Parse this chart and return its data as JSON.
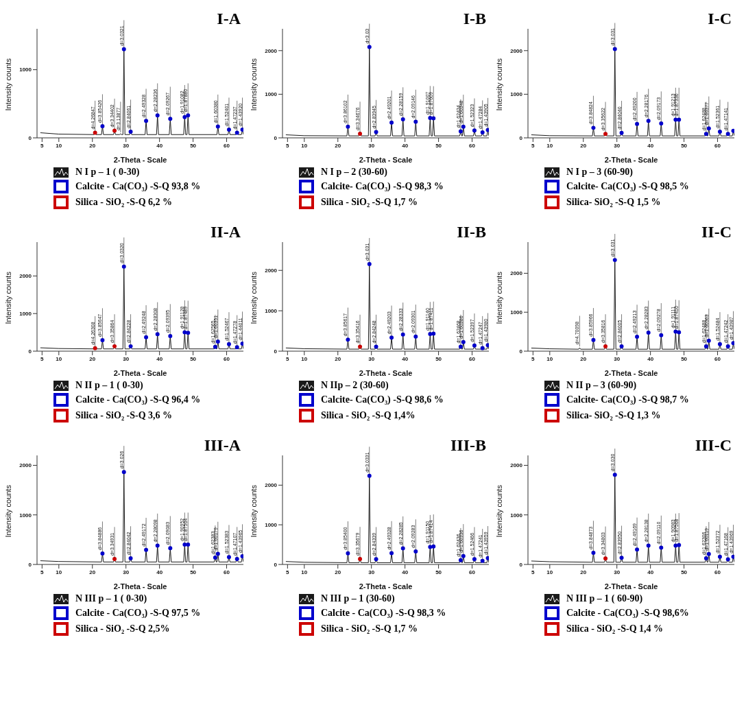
{
  "chart_data": [
    {
      "type": "line",
      "title": "I-A",
      "xlabel": "2-Theta - Scale",
      "ylabel": "Intensity counts",
      "xlim": [
        3.5,
        65
      ],
      "xticks": [
        5,
        10,
        20,
        30,
        40,
        50,
        60
      ],
      "ylim": [
        0,
        1600
      ],
      "yticks": [
        0,
        1000
      ],
      "legend": "bottom",
      "x": [
        4.5,
        10,
        20.5,
        20.8,
        21.1,
        22.7,
        23.0,
        23.3,
        26.3,
        26.6,
        26.9,
        28.1,
        28.4,
        28.7,
        29.1,
        29.4,
        29.7,
        31.1,
        31.4,
        31.7,
        35.7,
        36.0,
        36.3,
        39.1,
        39.4,
        39.7,
        42.9,
        43.2,
        43.5,
        47.2,
        47.5,
        47.8,
        48.2,
        48.5,
        48.8,
        57.1,
        57.4,
        57.7,
        60.4,
        60.7,
        61.0,
        62.8,
        63.1,
        63.4,
        64.4,
        64.7,
        65
      ],
      "series": [
        {
          "name": "N I p – 1 ( 0-30)",
          "color": "#1a1a1a",
          "values": [
            75,
            55,
            48,
            75,
            48,
            48,
            170,
            48,
            48,
            105,
            48,
            48,
            60,
            48,
            48,
            1300,
            48,
            48,
            90,
            48,
            48,
            250,
            48,
            48,
            330,
            48,
            48,
            280,
            48,
            48,
            305,
            48,
            48,
            330,
            48,
            48,
            165,
            48,
            48,
            120,
            48,
            48,
            75,
            48,
            48,
            120,
            48
          ]
        },
        {
          "name": "Calcite - Ca(CO₃) -S-Q 93,8 %",
          "type": "scatter",
          "marker": "circle",
          "color": "#0000cc",
          "x": [
            23.0,
            29.4,
            31.4,
            36.0,
            39.4,
            43.2,
            47.5,
            48.5,
            57.4,
            60.7,
            63.1,
            64.7
          ],
          "values": [
            170,
            1300,
            90,
            250,
            330,
            280,
            305,
            330,
            165,
            120,
            75,
            120
          ]
        },
        {
          "name": "Silica - SiO₂ -S-Q 6,2 %",
          "type": "scatter",
          "color": "#cc0000",
          "x": [
            20.8,
            26.6
          ],
          "values": [
            75,
            105
          ],
          "marker": "circle"
        }
      ],
      "annotations": [
        {
          "text": "d=4.26847",
          "x": 20.8,
          "y": 75
        },
        {
          "text": "d=3.85426",
          "x": 23.0,
          "y": 170
        },
        {
          "text": "d=3.34402",
          "x": 26.6,
          "y": 105
        },
        {
          "text": "d=3.13877",
          "x": 28.4,
          "y": 60
        },
        {
          "text": "d=3.0321",
          "x": 29.4,
          "y": 1300
        },
        {
          "text": "d=2.84061",
          "x": 31.4,
          "y": 90
        },
        {
          "text": "d=2.49328",
          "x": 36.0,
          "y": 250
        },
        {
          "text": "d=2.28236",
          "x": 39.4,
          "y": 330
        },
        {
          "text": "d=2.09267",
          "x": 43.2,
          "y": 280
        },
        {
          "text": "d=1.91082",
          "x": 47.5,
          "y": 305
        },
        {
          "text": "d=1.87880",
          "x": 48.5,
          "y": 330
        },
        {
          "text": "d=1.60380",
          "x": 57.4,
          "y": 165
        },
        {
          "text": "d=1.52401",
          "x": 60.7,
          "y": 120
        },
        {
          "text": "d=1.47237",
          "x": 63.1,
          "y": 75
        },
        {
          "text": "d=1.43920",
          "x": 64.7,
          "y": 120
        }
      ]
    },
    {
      "type": "line",
      "title": "I-B",
      "xlabel": "2-Theta - Scale",
      "ylabel": "Intensity counts",
      "xlim": [
        3.5,
        65
      ],
      "xticks": [
        5,
        10,
        20,
        30,
        40,
        50,
        60
      ],
      "ylim": [
        0,
        2500
      ],
      "yticks": [
        0,
        1000,
        2000
      ],
      "legend": "bottom",
      "x": [
        4.5,
        10,
        22.7,
        23.0,
        23.3,
        26.3,
        26.6,
        26.9,
        29.1,
        29.4,
        29.7,
        31.1,
        31.4,
        31.7,
        35.7,
        36.0,
        36.3,
        39.1,
        39.4,
        39.7,
        42.9,
        43.2,
        43.5,
        47.2,
        47.5,
        47.8,
        48.2,
        48.5,
        48.8,
        56.3,
        56.6,
        56.9,
        57.1,
        57.4,
        57.7,
        60.4,
        60.7,
        61.0,
        62.8,
        63.1,
        63.4,
        64.4,
        64.7,
        65
      ],
      "series": [
        {
          "name": "N I p – 2 (30-60)",
          "color": "#1a1a1a",
          "values": [
            70,
            50,
            45,
            257,
            45,
            45,
            95,
            45,
            45,
            2085,
            45,
            45,
            135,
            45,
            45,
            350,
            45,
            45,
            425,
            45,
            45,
            370,
            45,
            45,
            455,
            45,
            45,
            450,
            45,
            45,
            150,
            45,
            45,
            255,
            45,
            45,
            170,
            45,
            45,
            125,
            45,
            45,
            180,
            45
          ]
        },
        {
          "name": "Calcite- Ca(CO₃) -S-Q 98,3 %",
          "type": "scatter",
          "marker": "circle",
          "color": "#0000cc",
          "x": [
            23.0,
            29.4,
            31.4,
            36.0,
            39.4,
            43.2,
            47.5,
            48.5,
            56.6,
            57.4,
            60.7,
            63.1,
            64.7
          ],
          "values": [
            257,
            2085,
            135,
            350,
            425,
            370,
            455,
            450,
            150,
            255,
            170,
            125,
            180
          ]
        },
        {
          "name": "Silica - SiO₂ -S-Q 1,7 %",
          "type": "scatter",
          "color": "#cc0000",
          "x": [
            26.6
          ],
          "values": [
            95
          ],
          "marker": "circle"
        }
      ],
      "annotations": [
        {
          "text": "d=3.86102",
          "x": 23.0,
          "y": 257
        },
        {
          "text": "d=3.34676",
          "x": 26.6,
          "y": 95
        },
        {
          "text": "d=3.03",
          "x": 29.4,
          "y": 2085
        },
        {
          "text": "d=2.83945",
          "x": 31.4,
          "y": 135
        },
        {
          "text": "d=2.49201",
          "x": 36.0,
          "y": 350
        },
        {
          "text": "d=2.28159",
          "x": 39.4,
          "y": 425
        },
        {
          "text": "d=2.09146",
          "x": 43.2,
          "y": 370
        },
        {
          "text": "d=1.91007",
          "x": 47.5,
          "y": 455
        },
        {
          "text": "d=1.87609",
          "x": 48.5,
          "y": 450
        },
        {
          "text": "d=1.62434",
          "x": 56.6,
          "y": 150
        },
        {
          "text": "d=1.60348",
          "x": 57.4,
          "y": 255
        },
        {
          "text": "d=1.52323",
          "x": 60.7,
          "y": 170
        },
        {
          "text": "d=1.47284",
          "x": 63.1,
          "y": 125
        },
        {
          "text": "d=1.43905",
          "x": 64.7,
          "y": 180
        }
      ]
    },
    {
      "type": "line",
      "title": "I-C",
      "xlabel": "2-Theta - Scale",
      "ylabel": "Intensity counts",
      "xlim": [
        3.5,
        65
      ],
      "xticks": [
        5,
        10,
        20,
        30,
        40,
        50,
        60
      ],
      "ylim": [
        0,
        2500
      ],
      "yticks": [
        0,
        1000,
        2000
      ],
      "legend": "bottom",
      "x": [
        4.5,
        10,
        22.7,
        23.0,
        23.3,
        26.3,
        26.6,
        26.9,
        29.1,
        29.4,
        29.7,
        31.1,
        31.4,
        31.7,
        35.7,
        36.0,
        36.3,
        39.1,
        39.4,
        39.7,
        42.9,
        43.2,
        43.5,
        47.2,
        47.5,
        47.8,
        48.2,
        48.5,
        48.8,
        56.3,
        56.6,
        56.9,
        57.1,
        57.4,
        57.7,
        60.4,
        60.7,
        61.0,
        62.8,
        63.1,
        63.4,
        64.4,
        64.7,
        65
      ],
      "series": [
        {
          "name": "N I p – 3 (60-90)",
          "color": "#1a1a1a",
          "values": [
            70,
            50,
            45,
            230,
            45,
            45,
            90,
            45,
            45,
            2035,
            45,
            45,
            115,
            45,
            45,
            320,
            45,
            45,
            390,
            45,
            45,
            330,
            45,
            45,
            415,
            45,
            45,
            415,
            45,
            45,
            90,
            45,
            45,
            215,
            45,
            45,
            140,
            45,
            45,
            90,
            45,
            45,
            160,
            45
          ]
        },
        {
          "name": "Calcite- Ca(CO₃) -S-Q 98,5 %",
          "type": "scatter",
          "marker": "circle",
          "color": "#0000cc",
          "x": [
            23.0,
            29.4,
            31.4,
            36.0,
            39.4,
            43.2,
            47.5,
            48.5,
            56.6,
            57.4,
            60.7,
            63.1,
            64.7
          ],
          "values": [
            230,
            2035,
            115,
            320,
            390,
            330,
            415,
            415,
            90,
            215,
            140,
            90,
            160
          ]
        },
        {
          "name": "Silica- SiO₂ -S-Q 1,5 %",
          "type": "scatter",
          "color": "#cc0000",
          "x": [
            26.6
          ],
          "values": [
            90
          ],
          "marker": "circle"
        }
      ],
      "annotations": [
        {
          "text": "d=3.84824",
          "x": 23.0,
          "y": 230
        },
        {
          "text": "d=3.35622",
          "x": 26.6,
          "y": 90
        },
        {
          "text": "d=3.031",
          "x": 29.4,
          "y": 2035
        },
        {
          "text": "d=2.84040",
          "x": 31.4,
          "y": 115
        },
        {
          "text": "d=2.49200",
          "x": 36.0,
          "y": 320
        },
        {
          "text": "d=2.28176",
          "x": 39.4,
          "y": 390
        },
        {
          "text": "d=2.09173",
          "x": 43.2,
          "y": 330
        },
        {
          "text": "d=1.91213",
          "x": 47.5,
          "y": 415
        },
        {
          "text": "d=1.87336",
          "x": 48.5,
          "y": 415
        },
        {
          "text": "d=1.62488",
          "x": 56.6,
          "y": 90
        },
        {
          "text": "d=1.60377",
          "x": 57.4,
          "y": 215
        },
        {
          "text": "d=1.52361",
          "x": 60.7,
          "y": 140
        },
        {
          "text": "d=1.47141",
          "x": 63.1,
          "y": 90
        }
      ]
    },
    {
      "type": "line",
      "title": "II-A",
      "xlabel": "2-Theta - Scale",
      "ylabel": "Intensity counts",
      "xlim": [
        3.5,
        65
      ],
      "xticks": [
        5,
        10,
        20,
        30,
        40,
        50,
        60
      ],
      "ylim": [
        0,
        2900
      ],
      "yticks": [
        0,
        1000,
        2000
      ],
      "legend": "bottom",
      "x": [
        4.5,
        10,
        20.5,
        20.8,
        21.1,
        22.7,
        23.0,
        23.3,
        26.3,
        26.6,
        26.9,
        29.1,
        29.4,
        29.7,
        31.1,
        31.4,
        31.7,
        35.7,
        36.0,
        36.3,
        39.1,
        39.4,
        39.7,
        42.9,
        43.2,
        43.5,
        47.2,
        47.5,
        47.8,
        48.2,
        48.5,
        48.8,
        56.3,
        56.6,
        56.9,
        57.1,
        57.4,
        57.7,
        60.4,
        60.7,
        61.0,
        62.8,
        63.1,
        63.4,
        64.4,
        64.7,
        65
      ],
      "series": [
        {
          "name": "N II p – 1 ( 0-30)",
          "color": "#1a1a1a",
          "values": [
            90,
            70,
            60,
            80,
            60,
            60,
            290,
            60,
            60,
            130,
            60,
            60,
            2250,
            60,
            60,
            130,
            60,
            60,
            370,
            60,
            60,
            450,
            60,
            60,
            400,
            60,
            60,
            500,
            60,
            60,
            490,
            60,
            60,
            115,
            60,
            60,
            255,
            60,
            60,
            185,
            60,
            60,
            105,
            60,
            60,
            200,
            60
          ]
        },
        {
          "name": "Calcite - Ca(CO₃) -S-Q 96,4 %",
          "type": "scatter",
          "marker": "circle",
          "color": "#0000cc",
          "x": [
            23.0,
            29.4,
            31.4,
            36.0,
            39.4,
            43.2,
            47.5,
            48.5,
            56.6,
            57.4,
            60.7,
            63.1,
            64.7
          ],
          "values": [
            290,
            2250,
            130,
            370,
            450,
            400,
            500,
            490,
            115,
            255,
            185,
            105,
            200
          ]
        },
        {
          "name": "Silica - SiO₂ -S-Q 3,6 %",
          "type": "scatter",
          "color": "#cc0000",
          "x": [
            20.8,
            26.6
          ],
          "values": [
            80,
            130
          ],
          "marker": "circle"
        }
      ],
      "annotations": [
        {
          "text": "d=4.26308",
          "x": 20.8,
          "y": 80
        },
        {
          "text": "d=3.85647",
          "x": 23.0,
          "y": 290
        },
        {
          "text": "d=3.35864",
          "x": 26.6,
          "y": 130
        },
        {
          "text": "d=3.0320",
          "x": 29.4,
          "y": 2250
        },
        {
          "text": "d=2.84228",
          "x": 31.4,
          "y": 130
        },
        {
          "text": "d=2.49248",
          "x": 36.0,
          "y": 370
        },
        {
          "text": "d=2.28308",
          "x": 39.4,
          "y": 450
        },
        {
          "text": "d=2.09395",
          "x": 43.2,
          "y": 400
        },
        {
          "text": "d=1.91128",
          "x": 47.5,
          "y": 500
        },
        {
          "text": "d=1.87489",
          "x": 48.5,
          "y": 490
        },
        {
          "text": "d=1.62565",
          "x": 56.6,
          "y": 115
        },
        {
          "text": "d=1.60351",
          "x": 57.4,
          "y": 255
        },
        {
          "text": "d=1.52467",
          "x": 60.7,
          "y": 185
        },
        {
          "text": "d=1.47278",
          "x": 63.1,
          "y": 105
        },
        {
          "text": "d=1.44011",
          "x": 64.7,
          "y": 200
        }
      ]
    },
    {
      "type": "line",
      "title": "II-B",
      "xlabel": "2-Theta - Scale",
      "ylabel": "Intensity counts",
      "xlim": [
        3.5,
        65
      ],
      "xticks": [
        5,
        10,
        20,
        30,
        40,
        50,
        60
      ],
      "ylim": [
        0,
        2700
      ],
      "yticks": [
        0,
        1000,
        2000
      ],
      "legend": "bottom",
      "x": [
        4.5,
        10,
        22.7,
        23.0,
        23.3,
        26.3,
        26.6,
        26.9,
        29.1,
        29.4,
        29.7,
        31.1,
        31.4,
        31.7,
        35.7,
        36.0,
        36.3,
        39.1,
        39.4,
        39.7,
        42.9,
        43.2,
        43.5,
        47.2,
        47.5,
        47.8,
        48.2,
        48.5,
        48.8,
        56.3,
        56.6,
        56.9,
        57.1,
        57.4,
        57.7,
        60.4,
        60.7,
        61.0,
        62.8,
        63.1,
        63.4,
        64.4,
        64.7,
        65
      ],
      "series": [
        {
          "name": "N IIp – 2 (30-60)",
          "color": "#1a1a1a",
          "values": [
            80,
            60,
            50,
            285,
            50,
            50,
            110,
            50,
            50,
            2155,
            50,
            50,
            110,
            50,
            50,
            335,
            50,
            50,
            410,
            50,
            50,
            360,
            50,
            50,
            425,
            50,
            50,
            435,
            50,
            50,
            110,
            50,
            50,
            225,
            50,
            50,
            140,
            50,
            50,
            75,
            50,
            50,
            150,
            50
          ]
        },
        {
          "name": "Calcite- Ca(CO₃) -S-Q 98,6 %",
          "type": "scatter",
          "marker": "circle",
          "color": "#0000cc",
          "x": [
            23.0,
            29.4,
            31.4,
            36.0,
            39.4,
            43.2,
            47.5,
            48.5,
            56.6,
            57.4,
            60.7,
            63.1,
            64.7
          ],
          "values": [
            285,
            2155,
            110,
            335,
            410,
            360,
            425,
            435,
            110,
            225,
            140,
            75,
            150
          ]
        },
        {
          "name": "Silica - SiO₂ -S-Q 1,4%",
          "type": "scatter",
          "marker": "circle",
          "color": "#cc0000",
          "x": [
            26.6
          ],
          "values": [
            110
          ]
        }
      ],
      "annotations": [
        {
          "text": "d=3.85617",
          "x": 23.0,
          "y": 285
        },
        {
          "text": "d=3.35416",
          "x": 26.6,
          "y": 110
        },
        {
          "text": "d=3.031",
          "x": 29.4,
          "y": 2155
        },
        {
          "text": "d=2.84248",
          "x": 31.4,
          "y": 110
        },
        {
          "text": "d=2.49203",
          "x": 36.0,
          "y": 335
        },
        {
          "text": "d=2.28333",
          "x": 39.4,
          "y": 410
        },
        {
          "text": "d=2.09301",
          "x": 43.2,
          "y": 360
        },
        {
          "text": "d=1.91140",
          "x": 47.5,
          "y": 425
        },
        {
          "text": "d=1.87411",
          "x": 48.5,
          "y": 435
        },
        {
          "text": "d=1.62468",
          "x": 56.6,
          "y": 110
        },
        {
          "text": "d=1.60386",
          "x": 57.4,
          "y": 225
        },
        {
          "text": "d=1.52397",
          "x": 60.7,
          "y": 140
        },
        {
          "text": "d=1.47247",
          "x": 63.1,
          "y": 75
        },
        {
          "text": "d=1.43980",
          "x": 64.7,
          "y": 150
        }
      ]
    },
    {
      "type": "line",
      "title": "II-C",
      "xlabel": "2-Theta - Scale",
      "ylabel": "Intensity counts",
      "xlim": [
        3.5,
        65
      ],
      "xticks": [
        5,
        10,
        20,
        30,
        40,
        50,
        60
      ],
      "ylim": [
        0,
        2800
      ],
      "yticks": [
        0,
        1000,
        2000
      ],
      "legend": "bottom",
      "x": [
        4.5,
        10,
        18.6,
        18.9,
        19.2,
        22.7,
        23.0,
        23.3,
        26.3,
        26.6,
        26.9,
        29.1,
        29.4,
        29.7,
        31.1,
        31.4,
        31.7,
        35.7,
        36.0,
        36.3,
        39.1,
        39.4,
        39.7,
        42.9,
        43.2,
        43.5,
        47.2,
        47.5,
        47.8,
        48.2,
        48.5,
        48.8,
        56.3,
        56.6,
        56.9,
        57.1,
        57.4,
        57.7,
        60.4,
        60.7,
        61.0,
        62.8,
        63.1,
        63.4,
        64.4,
        64.7,
        65
      ],
      "series": [
        {
          "name": "N II p – 3 (60-90)",
          "color": "#1a1a1a",
          "values": [
            80,
            60,
            50,
            85,
            50,
            50,
            285,
            50,
            50,
            125,
            50,
            50,
            2340,
            50,
            50,
            125,
            50,
            50,
            370,
            50,
            50,
            475,
            50,
            50,
            410,
            50,
            50,
            500,
            50,
            50,
            485,
            50,
            50,
            125,
            50,
            50,
            270,
            50,
            50,
            180,
            50,
            50,
            125,
            50,
            50,
            205,
            50
          ]
        },
        {
          "name": "Calcite- Ca(CO₃) -S-Q 98,7 %",
          "type": "scatter",
          "marker": "circle",
          "color": "#0000cc",
          "x": [
            23.0,
            29.4,
            31.4,
            36.0,
            39.4,
            43.2,
            47.5,
            48.5,
            56.6,
            57.4,
            60.7,
            63.1,
            64.7
          ],
          "values": [
            285,
            2340,
            125,
            370,
            475,
            410,
            500,
            485,
            125,
            270,
            180,
            125,
            205
          ]
        },
        {
          "name": "Silica- SiO₂ -S-Q 1,3 %",
          "type": "scatter",
          "marker": "circle",
          "color": "#cc0000",
          "x": [
            26.6
          ],
          "values": [
            125
          ]
        }
      ],
      "annotations": [
        {
          "text": "d=4.70098",
          "x": 18.9,
          "y": 85
        },
        {
          "text": "d=3.85966",
          "x": 23.0,
          "y": 285
        },
        {
          "text": "d=3.35816",
          "x": 26.6,
          "y": 125
        },
        {
          "text": "d=3.031",
          "x": 29.4,
          "y": 2340
        },
        {
          "text": "d=2.84005",
          "x": 31.4,
          "y": 125
        },
        {
          "text": "d=2.49213",
          "x": 36.0,
          "y": 370
        },
        {
          "text": "d=2.28283",
          "x": 39.4,
          "y": 475
        },
        {
          "text": "d=2.09278",
          "x": 43.2,
          "y": 410
        },
        {
          "text": "d=1.91111",
          "x": 47.5,
          "y": 500
        },
        {
          "text": "d=1.87410",
          "x": 48.5,
          "y": 485
        },
        {
          "text": "d=1.62488",
          "x": 56.6,
          "y": 125
        },
        {
          "text": "d=1.60363",
          "x": 57.4,
          "y": 270
        },
        {
          "text": "d=1.52484",
          "x": 60.7,
          "y": 180
        },
        {
          "text": "d=1.47242",
          "x": 63.1,
          "y": 125
        },
        {
          "text": "d=1.43987",
          "x": 64.7,
          "y": 205
        }
      ]
    },
    {
      "type": "line",
      "title": "III-A",
      "xlabel": "2-Theta - Scale",
      "ylabel": "Intensity counts",
      "xlim": [
        3.5,
        65
      ],
      "xticks": [
        5,
        10,
        20,
        30,
        40,
        50,
        60
      ],
      "ylim": [
        0,
        2200
      ],
      "yticks": [
        0,
        1000,
        2000
      ],
      "legend": "bottom",
      "x": [
        4.5,
        10,
        22.7,
        23.0,
        23.3,
        26.3,
        26.6,
        26.9,
        29.1,
        29.4,
        29.7,
        31.1,
        31.4,
        31.7,
        35.7,
        36.0,
        36.3,
        39.1,
        39.4,
        39.7,
        42.9,
        43.2,
        43.5,
        47.2,
        47.5,
        47.8,
        48.2,
        48.5,
        48.8,
        56.3,
        56.6,
        56.9,
        57.1,
        57.4,
        57.7,
        60.4,
        60.7,
        61.0,
        62.8,
        63.1,
        63.4,
        64.4,
        64.7,
        65
      ],
      "series": [
        {
          "name": "N III p – 1 ( 0-30)",
          "color": "#1a1a1a",
          "values": [
            75,
            60,
            50,
            220,
            50,
            50,
            110,
            50,
            50,
            1865,
            50,
            50,
            125,
            50,
            50,
            295,
            50,
            50,
            380,
            50,
            50,
            330,
            50,
            50,
            400,
            50,
            50,
            400,
            50,
            50,
            140,
            50,
            50,
            215,
            50,
            50,
            150,
            50,
            50,
            110,
            50,
            50,
            165,
            50
          ]
        },
        {
          "name": "Calcite - Ca(CO₃) -S-Q 97,5 %",
          "type": "scatter",
          "marker": "circle",
          "color": "#0000cc",
          "x": [
            23.0,
            29.4,
            31.4,
            36.0,
            39.4,
            43.2,
            47.5,
            48.5,
            56.6,
            57.4,
            60.7,
            63.1,
            64.7
          ],
          "values": [
            220,
            1865,
            125,
            295,
            380,
            330,
            400,
            400,
            140,
            215,
            150,
            110,
            165
          ]
        },
        {
          "name": "Silica - SiO₂ -S-Q 2,5%",
          "type": "scatter",
          "marker": "circle",
          "color": "#cc0000",
          "x": [
            26.6
          ],
          "values": [
            110
          ]
        }
      ],
      "annotations": [
        {
          "text": "d=3.84886",
          "x": 23.0,
          "y": 220
        },
        {
          "text": "d=3.34931",
          "x": 26.6,
          "y": 110
        },
        {
          "text": "d=3.026",
          "x": 29.4,
          "y": 1865
        },
        {
          "text": "d=2.84042",
          "x": 31.4,
          "y": 125
        },
        {
          "text": "d=2.49172",
          "x": 36.0,
          "y": 295
        },
        {
          "text": "d=2.28098",
          "x": 39.4,
          "y": 380
        },
        {
          "text": "d=2.09083",
          "x": 43.2,
          "y": 330
        },
        {
          "text": "d=1.90952",
          "x": 47.5,
          "y": 400
        },
        {
          "text": "d=1.87504",
          "x": 48.5,
          "y": 400
        },
        {
          "text": "d=1.62383",
          "x": 56.6,
          "y": 140
        },
        {
          "text": "d=1.60179",
          "x": 57.4,
          "y": 215
        },
        {
          "text": "d=1.52383",
          "x": 60.7,
          "y": 150
        },
        {
          "text": "d=1.47107",
          "x": 63.1,
          "y": 110
        },
        {
          "text": "d=1.43965",
          "x": 64.7,
          "y": 165
        }
      ]
    },
    {
      "type": "line",
      "title": "III-B",
      "xlabel": "2-Theta - Scale",
      "ylabel": "Intensity counts",
      "xlim": [
        3.5,
        65
      ],
      "xticks": [
        5,
        10,
        20,
        30,
        40,
        50,
        60
      ],
      "ylim": [
        0,
        2750
      ],
      "yticks": [
        0,
        1000,
        2000
      ],
      "legend": "bottom",
      "x": [
        4.5,
        10,
        22.7,
        23.0,
        23.3,
        26.3,
        26.6,
        26.9,
        29.1,
        29.4,
        29.7,
        31.1,
        31.4,
        31.7,
        35.7,
        36.0,
        36.3,
        39.1,
        39.4,
        39.7,
        42.9,
        43.2,
        43.5,
        47.2,
        47.5,
        47.8,
        48.2,
        48.5,
        48.8,
        56.3,
        56.6,
        56.9,
        57.1,
        57.4,
        57.7,
        60.4,
        60.7,
        61.0,
        62.8,
        63.1,
        63.4,
        64.4,
        64.7,
        65
      ],
      "series": [
        {
          "name": "N III p – 1 (30-60)",
          "color": "#1a1a1a",
          "values": [
            75,
            55,
            45,
            280,
            45,
            45,
            140,
            45,
            45,
            2235,
            45,
            45,
            135,
            45,
            45,
            285,
            45,
            45,
            405,
            45,
            45,
            330,
            45,
            45,
            440,
            45,
            45,
            455,
            45,
            45,
            110,
            45,
            45,
            210,
            45,
            45,
            135,
            45,
            45,
            90,
            45,
            45,
            160,
            45
          ]
        },
        {
          "name": "Calcite - Ca(CO₃) -S-Q 98,3 %",
          "type": "scatter",
          "marker": "circle",
          "color": "#0000cc",
          "x": [
            23.0,
            29.4,
            31.4,
            36.0,
            39.4,
            43.2,
            47.5,
            48.5,
            56.6,
            57.4,
            60.7,
            63.1,
            64.7
          ],
          "values": [
            280,
            2235,
            135,
            285,
            405,
            330,
            440,
            455,
            110,
            210,
            135,
            90,
            160
          ]
        },
        {
          "name": "Silica - SiO₂ -S-Q 1,7 %",
          "type": "scatter",
          "color": "#cc0000",
          "x": [
            26.6
          ],
          "values": [
            140
          ],
          "marker": "circle"
        }
      ],
      "annotations": [
        {
          "text": "d=3.85400",
          "x": 23.0,
          "y": 280
        },
        {
          "text": "d=3.35679",
          "x": 26.6,
          "y": 140
        },
        {
          "text": "d=3.0331",
          "x": 29.4,
          "y": 2235
        },
        {
          "text": "d=2.84339",
          "x": 31.4,
          "y": 135
        },
        {
          "text": "d=2.49328",
          "x": 36.0,
          "y": 285
        },
        {
          "text": "d=2.28285",
          "x": 39.4,
          "y": 405
        },
        {
          "text": "d=2.09283",
          "x": 43.2,
          "y": 330
        },
        {
          "text": "d=1.91150",
          "x": 47.5,
          "y": 440
        },
        {
          "text": "d=1.87414",
          "x": 48.5,
          "y": 455
        },
        {
          "text": "d=1.62436",
          "x": 56.6,
          "y": 110
        },
        {
          "text": "d=1.60336",
          "x": 57.4,
          "y": 210
        },
        {
          "text": "d=1.52466",
          "x": 60.7,
          "y": 135
        },
        {
          "text": "d=1.47241",
          "x": 63.1,
          "y": 90
        },
        {
          "text": "d=1.43959",
          "x": 64.7,
          "y": 160
        }
      ]
    },
    {
      "type": "line",
      "title": "III-C",
      "xlabel": "2-Theta - Scale",
      "ylabel": "Intensity counts",
      "xlim": [
        3.5,
        65
      ],
      "xticks": [
        5,
        10,
        20,
        30,
        40,
        50,
        60
      ],
      "ylim": [
        0,
        2200
      ],
      "yticks": [
        0,
        1000,
        2000
      ],
      "legend": "bottom",
      "x": [
        4.5,
        10,
        22.7,
        23.0,
        23.3,
        26.3,
        26.6,
        26.9,
        29.1,
        29.4,
        29.7,
        31.1,
        31.4,
        31.7,
        35.7,
        36.0,
        36.3,
        39.1,
        39.4,
        39.7,
        42.9,
        43.2,
        43.5,
        47.2,
        47.5,
        47.8,
        48.2,
        48.5,
        48.8,
        56.3,
        56.6,
        56.9,
        57.1,
        57.4,
        57.7,
        60.4,
        60.7,
        61.0,
        62.8,
        63.1,
        63.4,
        64.4,
        64.7,
        65
      ],
      "series": [
        {
          "name": "N III p – 1 ( 60-90)",
          "color": "#1a1a1a",
          "values": [
            70,
            55,
            45,
            235,
            45,
            45,
            120,
            45,
            45,
            1810,
            45,
            45,
            135,
            45,
            45,
            300,
            45,
            45,
            380,
            45,
            45,
            340,
            45,
            45,
            380,
            45,
            45,
            390,
            45,
            45,
            125,
            45,
            45,
            210,
            45,
            45,
            155,
            45,
            45,
            105,
            45,
            45,
            155,
            45
          ]
        },
        {
          "name": "Calcite - Ca(CO₃) -S-Q 98,6%",
          "type": "scatter",
          "marker": "circle",
          "color": "#0000cc",
          "x": [
            23.0,
            29.4,
            31.4,
            36.0,
            39.4,
            43.2,
            47.5,
            48.5,
            56.6,
            57.4,
            60.7,
            63.1,
            64.7
          ],
          "values": [
            235,
            1810,
            135,
            300,
            380,
            340,
            380,
            390,
            125,
            210,
            155,
            105,
            155
          ]
        },
        {
          "name": "Silica - SiO₂ -S-Q 1,4 %",
          "type": "scatter",
          "marker": "circle",
          "color": "#cc0000",
          "x": [
            26.6
          ],
          "values": [
            120
          ]
        }
      ],
      "annotations": [
        {
          "text": "d=3.84873",
          "x": 23.0,
          "y": 235
        },
        {
          "text": "d=3.34803",
          "x": 26.6,
          "y": 120
        },
        {
          "text": "d=3.030",
          "x": 29.4,
          "y": 1810
        },
        {
          "text": "d=2.83950",
          "x": 31.4,
          "y": 135
        },
        {
          "text": "d=2.49169",
          "x": 36.0,
          "y": 300
        },
        {
          "text": "d=2.28138",
          "x": 39.4,
          "y": 380
        },
        {
          "text": "d=2.09110",
          "x": 43.2,
          "y": 340
        },
        {
          "text": "d=1.90983",
          "x": 47.5,
          "y": 380
        },
        {
          "text": "d=1.87508",
          "x": 48.5,
          "y": 390
        },
        {
          "text": "d=1.62306",
          "x": 56.6,
          "y": 125
        },
        {
          "text": "d=1.60119",
          "x": 57.4,
          "y": 210
        },
        {
          "text": "d=1.52372",
          "x": 60.7,
          "y": 155
        },
        {
          "text": "d=1.47168",
          "x": 63.1,
          "y": 105
        },
        {
          "text": "d=1.43969",
          "x": 64.7,
          "y": 155
        }
      ]
    }
  ]
}
